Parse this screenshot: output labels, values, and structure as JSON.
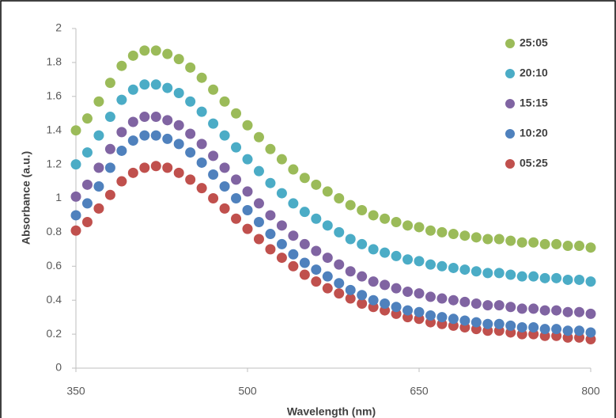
{
  "chart_data": {
    "type": "scatter",
    "x_label": "Wavelength (nm)",
    "y_label": "Absorbance (a.u.)",
    "x": [
      350,
      360,
      370,
      380,
      390,
      400,
      410,
      420,
      430,
      440,
      450,
      460,
      470,
      480,
      490,
      500,
      510,
      520,
      530,
      540,
      550,
      560,
      570,
      580,
      590,
      600,
      610,
      620,
      630,
      640,
      650,
      660,
      670,
      680,
      690,
      700,
      710,
      720,
      730,
      740,
      750,
      760,
      770,
      780,
      790,
      800
    ],
    "series": [
      {
        "name": "25:05",
        "color": "#9bbb59",
        "values": [
          1.4,
          1.47,
          1.57,
          1.68,
          1.78,
          1.84,
          1.87,
          1.87,
          1.85,
          1.82,
          1.77,
          1.71,
          1.64,
          1.57,
          1.5,
          1.43,
          1.36,
          1.29,
          1.23,
          1.17,
          1.12,
          1.08,
          1.04,
          1.0,
          0.96,
          0.93,
          0.9,
          0.88,
          0.86,
          0.84,
          0.83,
          0.81,
          0.8,
          0.79,
          0.78,
          0.77,
          0.76,
          0.76,
          0.75,
          0.74,
          0.74,
          0.73,
          0.73,
          0.72,
          0.72,
          0.71
        ]
      },
      {
        "name": "20:10",
        "color": "#4bacc6",
        "values": [
          1.2,
          1.27,
          1.37,
          1.48,
          1.58,
          1.64,
          1.67,
          1.67,
          1.65,
          1.62,
          1.57,
          1.51,
          1.44,
          1.37,
          1.3,
          1.23,
          1.16,
          1.09,
          1.03,
          0.97,
          0.92,
          0.88,
          0.84,
          0.8,
          0.76,
          0.73,
          0.7,
          0.68,
          0.66,
          0.64,
          0.63,
          0.61,
          0.6,
          0.59,
          0.58,
          0.57,
          0.56,
          0.56,
          0.55,
          0.54,
          0.54,
          0.53,
          0.53,
          0.52,
          0.52,
          0.51
        ]
      },
      {
        "name": "15:15",
        "color": "#8064a2",
        "values": [
          1.01,
          1.08,
          1.18,
          1.29,
          1.39,
          1.45,
          1.48,
          1.48,
          1.46,
          1.43,
          1.38,
          1.32,
          1.25,
          1.18,
          1.11,
          1.04,
          0.97,
          0.9,
          0.84,
          0.78,
          0.73,
          0.69,
          0.65,
          0.61,
          0.57,
          0.54,
          0.51,
          0.49,
          0.47,
          0.45,
          0.44,
          0.42,
          0.41,
          0.4,
          0.39,
          0.38,
          0.37,
          0.37,
          0.36,
          0.35,
          0.35,
          0.34,
          0.34,
          0.33,
          0.33,
          0.32
        ]
      },
      {
        "name": "10:20",
        "color": "#4f81bd",
        "values": [
          0.9,
          0.97,
          1.07,
          1.18,
          1.28,
          1.34,
          1.37,
          1.37,
          1.35,
          1.32,
          1.27,
          1.21,
          1.14,
          1.07,
          1.0,
          0.93,
          0.86,
          0.79,
          0.73,
          0.67,
          0.62,
          0.58,
          0.54,
          0.5,
          0.46,
          0.43,
          0.4,
          0.38,
          0.36,
          0.34,
          0.33,
          0.31,
          0.3,
          0.29,
          0.28,
          0.27,
          0.26,
          0.26,
          0.25,
          0.24,
          0.24,
          0.23,
          0.23,
          0.22,
          0.22,
          0.21
        ]
      },
      {
        "name": "05:25",
        "color": "#c0504d",
        "values": [
          0.81,
          0.86,
          0.94,
          1.02,
          1.1,
          1.15,
          1.18,
          1.19,
          1.18,
          1.15,
          1.11,
          1.06,
          1.0,
          0.94,
          0.88,
          0.82,
          0.76,
          0.7,
          0.65,
          0.6,
          0.55,
          0.51,
          0.47,
          0.44,
          0.41,
          0.38,
          0.36,
          0.34,
          0.32,
          0.3,
          0.29,
          0.27,
          0.26,
          0.25,
          0.24,
          0.23,
          0.22,
          0.22,
          0.21,
          0.2,
          0.2,
          0.19,
          0.19,
          0.18,
          0.18,
          0.17
        ]
      }
    ],
    "xlim": [
      350,
      800
    ],
    "xticks": [
      350,
      500,
      650,
      800
    ],
    "ylim": [
      0,
      2
    ],
    "yticks": [
      0,
      0.2,
      0.4,
      0.6,
      0.8,
      1,
      1.2,
      1.4,
      1.6,
      1.8,
      2
    ],
    "grid": false,
    "legend": "upper right"
  }
}
